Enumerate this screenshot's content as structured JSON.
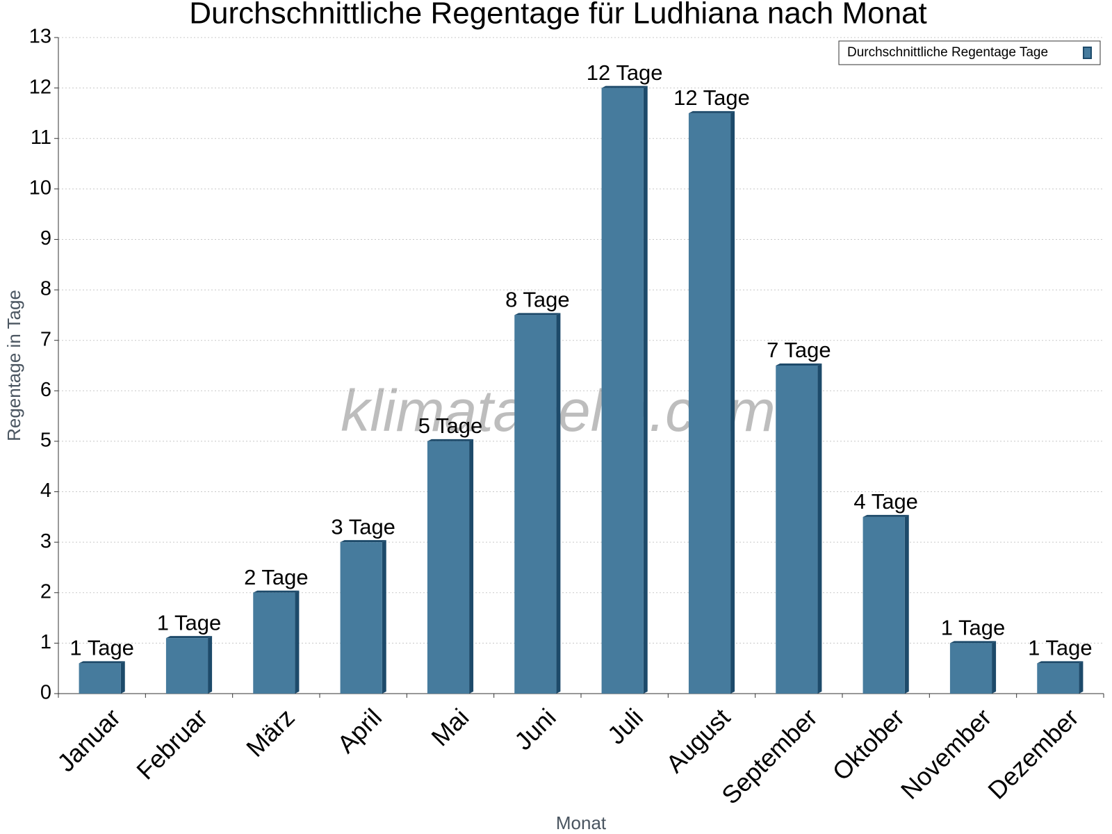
{
  "chart_data": {
    "type": "bar",
    "title": "Durchschnittliche Regentage für Ludhiana nach Monat",
    "x_label": "Monat",
    "y_label": "Regentage in Tage",
    "watermark": "klimatabelle.com",
    "categories": [
      "Januar",
      "Februar",
      "März",
      "April",
      "Mai",
      "Juni",
      "Juli",
      "August",
      "September",
      "Oktober",
      "November",
      "Dezember"
    ],
    "series": [
      {
        "name": "Durchschnittliche Regentage Tage",
        "color": "#467b9d",
        "values": [
          0.6,
          1.1,
          2,
          3,
          5,
          7.5,
          12,
          11.5,
          6.5,
          3.5,
          1,
          0.6
        ],
        "value_labels": [
          "1 Tage",
          "1 Tage",
          "2 Tage",
          "3 Tage",
          "5 Tage",
          "8 Tage",
          "12 Tage",
          "12 Tage",
          "7 Tage",
          "4 Tage",
          "1 Tage",
          "1 Tage"
        ]
      }
    ],
    "ylim": [
      0,
      13
    ],
    "yticks": [
      0,
      1,
      2,
      3,
      4,
      5,
      6,
      7,
      8,
      9,
      10,
      11,
      12,
      13
    ],
    "grid": true,
    "legend": "top-right"
  }
}
